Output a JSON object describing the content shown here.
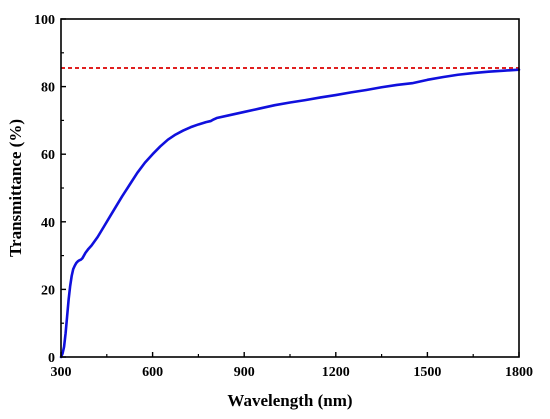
{
  "chart_data": {
    "type": "line",
    "title": "",
    "xlabel": "Wavelength (nm)",
    "ylabel": "Transmittance (%)",
    "xlim": [
      300,
      1800
    ],
    "ylim": [
      0,
      100
    ],
    "x_ticks": [
      300,
      600,
      900,
      1200,
      1500,
      1800
    ],
    "y_ticks": [
      0,
      20,
      40,
      60,
      80,
      100
    ],
    "grid": false,
    "legend": "none",
    "series": [
      {
        "color": "#1010dd",
        "x": [
          300,
          305,
          310,
          315,
          320,
          325,
          330,
          335,
          340,
          345,
          350,
          355,
          360,
          365,
          370,
          375,
          380,
          390,
          400,
          420,
          440,
          460,
          480,
          500,
          525,
          550,
          575,
          600,
          625,
          650,
          675,
          700,
          725,
          750,
          775,
          790,
          800,
          810,
          850,
          900,
          950,
          1000,
          1050,
          1100,
          1150,
          1200,
          1250,
          1300,
          1350,
          1400,
          1450,
          1500,
          1550,
          1600,
          1650,
          1700,
          1750,
          1800
        ],
        "y": [
          0,
          1,
          3,
          7,
          12,
          17,
          21,
          24,
          26,
          27,
          27.8,
          28.3,
          28.6,
          28.8,
          29.2,
          30,
          30.8,
          32,
          33,
          35.5,
          38.5,
          41.5,
          44.5,
          47.5,
          51,
          54.5,
          57.5,
          60,
          62.3,
          64.3,
          65.8,
          67,
          68,
          68.8,
          69.5,
          69.8,
          70.3,
          70.7,
          71.5,
          72.5,
          73.5,
          74.5,
          75.3,
          76,
          76.8,
          77.5,
          78.3,
          79,
          79.8,
          80.5,
          81,
          82,
          82.8,
          83.5,
          84,
          84.4,
          84.7,
          85
        ]
      }
    ],
    "reference_line": {
      "y": 85.5,
      "color": "#e02020",
      "style": "dashed"
    }
  }
}
